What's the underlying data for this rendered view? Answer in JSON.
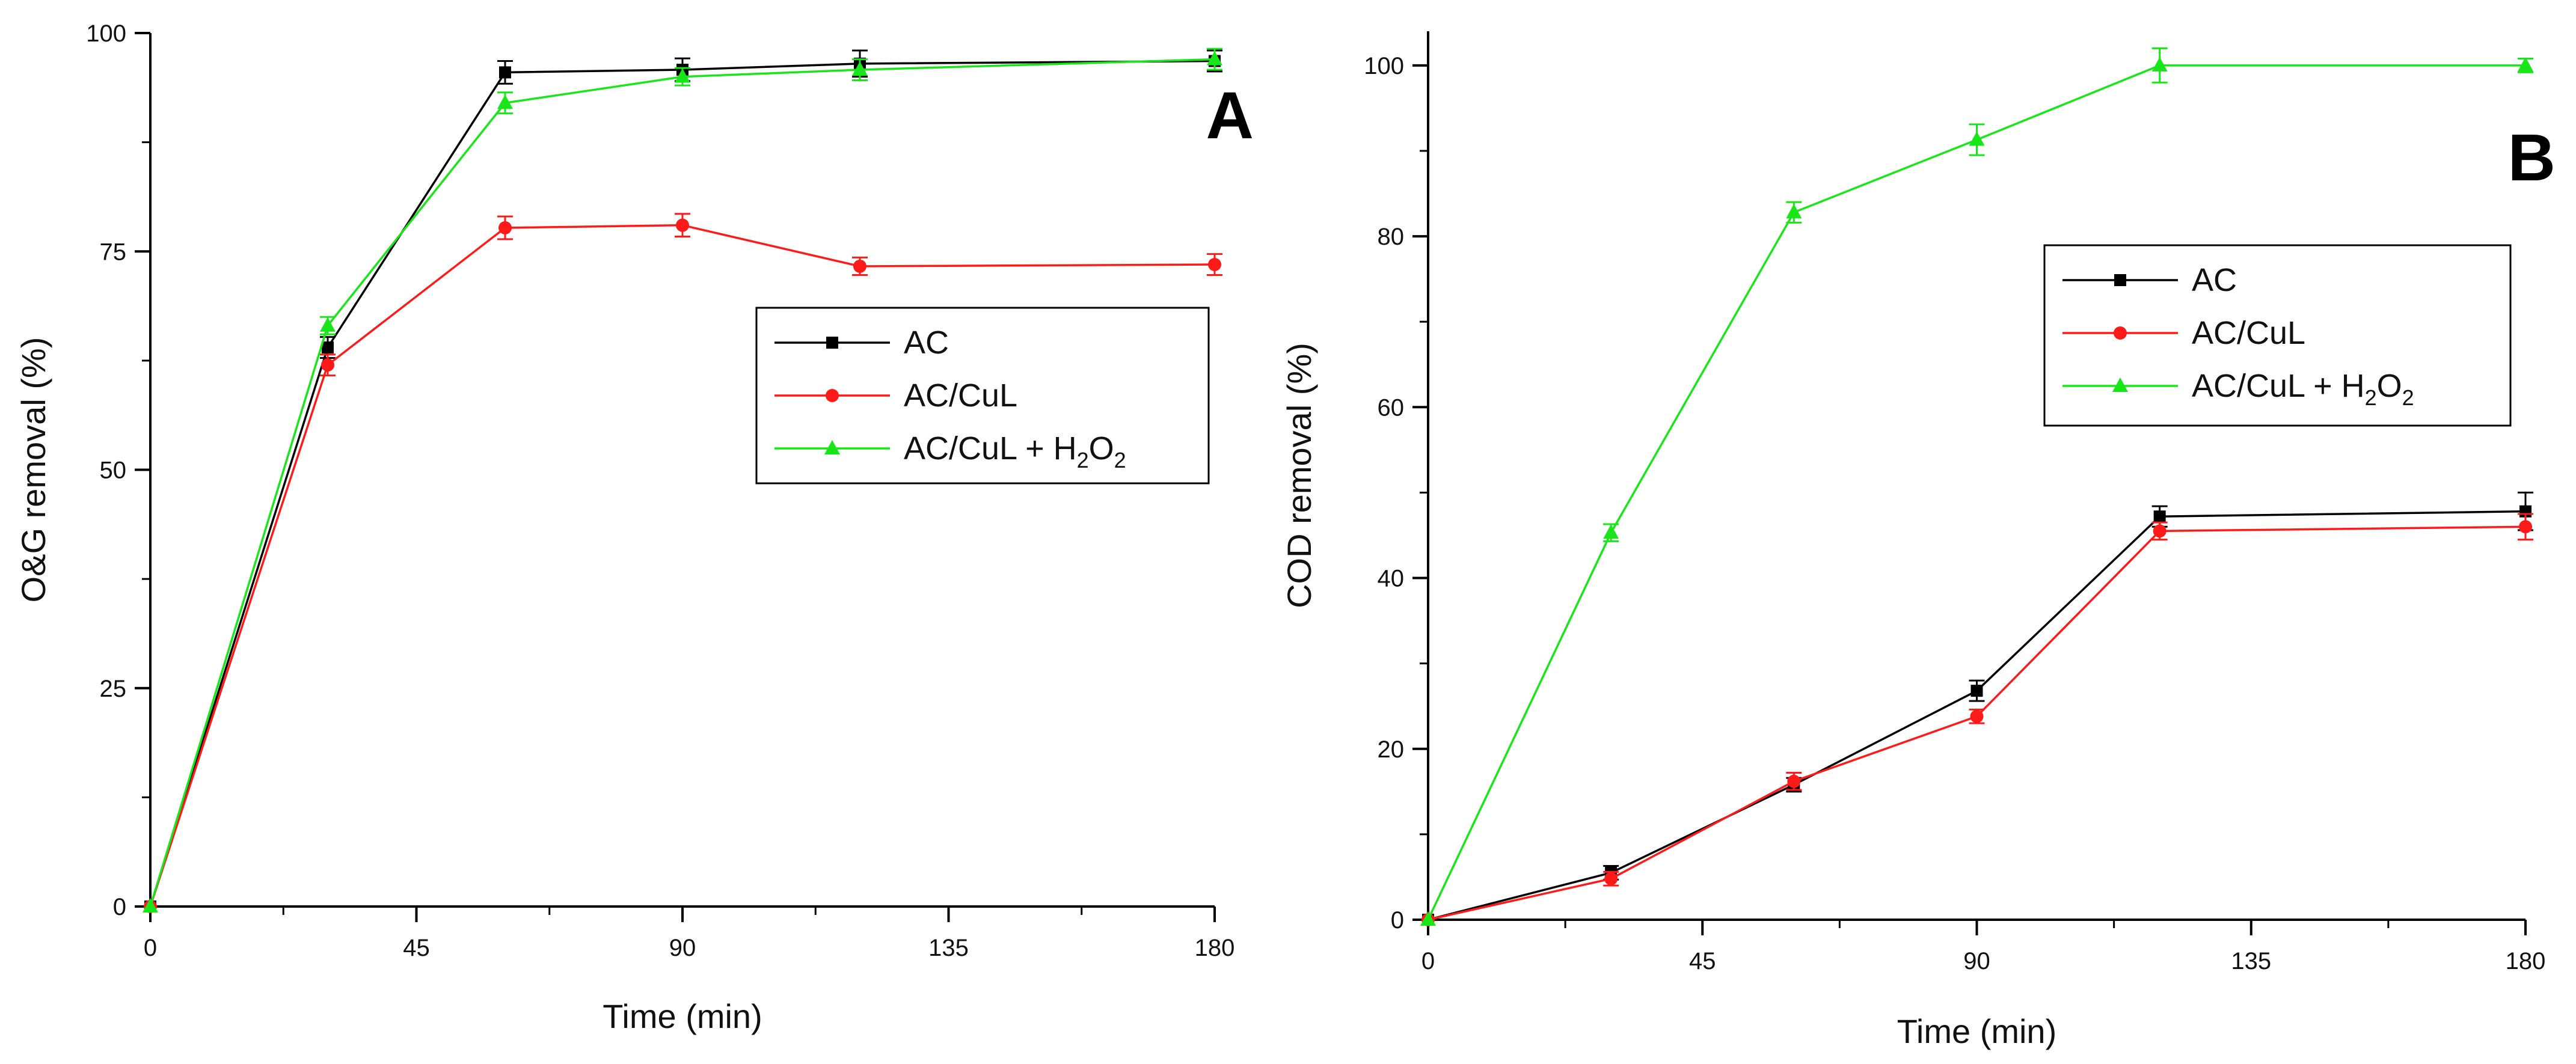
{
  "chart_data": [
    {
      "panel": "A",
      "type": "line",
      "xlabel": "Time (min)",
      "ylabel": "O&G removal (%)",
      "xlim": [
        0,
        180
      ],
      "ylim": [
        0,
        100
      ],
      "xticks": [
        "0",
        "45",
        "90",
        "135",
        "180"
      ],
      "yticks": [
        "0",
        "25",
        "50",
        "75",
        "100"
      ],
      "legend_position": "center-right",
      "series": [
        {
          "name": "AC",
          "color": "#000000",
          "marker": "square",
          "x": [
            0,
            30,
            60,
            90,
            120,
            180
          ],
          "y": [
            0,
            64,
            95.5,
            95.8,
            96.5,
            96.8
          ],
          "err": [
            0,
            1.2,
            1.3,
            1.3,
            1.5,
            1.2
          ]
        },
        {
          "name": "AC/CuL",
          "color": "#ff1a1a",
          "marker": "circle",
          "x": [
            0,
            30,
            60,
            90,
            120,
            180
          ],
          "y": [
            0,
            62,
            77.7,
            78,
            73.3,
            73.5
          ],
          "err": [
            0,
            1.2,
            1.3,
            1.3,
            1.0,
            1.2
          ]
        },
        {
          "name": "AC/CuL + H2O2",
          "color": "#19e619",
          "marker": "triangle",
          "x": [
            0,
            30,
            60,
            90,
            120,
            180
          ],
          "y": [
            0,
            66.5,
            92,
            95,
            95.8,
            97
          ],
          "err": [
            0,
            1.0,
            1.2,
            1.0,
            1.2,
            1.2
          ]
        }
      ]
    },
    {
      "panel": "B",
      "type": "line",
      "xlabel": "Time (min)",
      "ylabel": "COD removal (%)",
      "xlim": [
        0,
        180
      ],
      "ylim": [
        0,
        104
      ],
      "xticks": [
        "0",
        "45",
        "90",
        "135",
        "180"
      ],
      "yticks": [
        "0",
        "20",
        "40",
        "60",
        "80",
        "100"
      ],
      "legend_position": "center-right",
      "series": [
        {
          "name": "AC",
          "color": "#000000",
          "marker": "square",
          "x": [
            0,
            30,
            60,
            90,
            120,
            180
          ],
          "y": [
            0,
            5.5,
            15.8,
            26.8,
            47.2,
            47.8
          ],
          "err": [
            0,
            0.8,
            0.8,
            1.2,
            1.2,
            2.2
          ]
        },
        {
          "name": "AC/CuL",
          "color": "#ff1a1a",
          "marker": "circle",
          "x": [
            0,
            30,
            60,
            90,
            120,
            180
          ],
          "y": [
            0,
            4.8,
            16.2,
            23.8,
            45.5,
            46
          ],
          "err": [
            0,
            0.8,
            1.0,
            0.8,
            1.0,
            1.5
          ]
        },
        {
          "name": "AC/CuL + H2O2",
          "color": "#19e619",
          "marker": "triangle",
          "x": [
            0,
            30,
            60,
            90,
            120,
            180
          ],
          "y": [
            0,
            45.3,
            82.8,
            91.3,
            100,
            100
          ],
          "err": [
            0,
            1.0,
            1.2,
            1.8,
            2.0,
            0.8
          ]
        }
      ]
    }
  ]
}
